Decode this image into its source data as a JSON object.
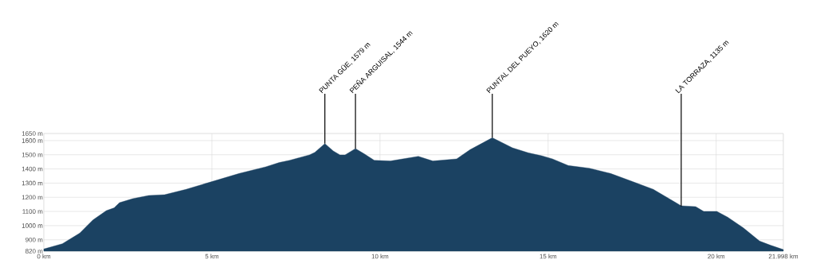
{
  "chart_data": {
    "type": "area",
    "x": [
      0,
      0.55,
      1.07,
      1.46,
      1.86,
      2.09,
      2.25,
      2.64,
      3.12,
      3.59,
      4.23,
      5.02,
      5.81,
      6.6,
      7.0,
      7.31,
      7.9,
      8.06,
      8.36,
      8.61,
      8.81,
      8.96,
      9.27,
      9.52,
      9.83,
      10.31,
      10.78,
      11.14,
      11.57,
      12.28,
      12.68,
      13.34,
      13.94,
      14.41,
      14.81,
      15.13,
      15.6,
      16.23,
      16.86,
      17.5,
      18.13,
      18.96,
      19.39,
      19.63,
      20.02,
      20.34,
      20.81,
      21.29,
      21.6,
      21.998
    ],
    "series": [
      {
        "color": "#1b4262",
        "values": [
          835,
          872,
          947,
          1040,
          1106,
          1125,
          1162,
          1190,
          1213,
          1218,
          1256,
          1312,
          1368,
          1415,
          1445,
          1461,
          1499,
          1517,
          1579,
          1527,
          1499,
          1499,
          1544,
          1508,
          1461,
          1456,
          1475,
          1489,
          1456,
          1471,
          1536,
          1620,
          1549,
          1514,
          1493,
          1471,
          1424,
          1405,
          1368,
          1312,
          1256,
          1140,
          1134,
          1100,
          1100,
          1060,
          984,
          891,
          863,
          831
        ]
      }
    ],
    "xlim": [
      0,
      21.998
    ],
    "ylim": [
      820,
      1650
    ],
    "xticks": [
      {
        "value": 0,
        "label": "0 km"
      },
      {
        "value": 5,
        "label": "5 km"
      },
      {
        "value": 10,
        "label": "10 km"
      },
      {
        "value": 15,
        "label": "15 km"
      },
      {
        "value": 20,
        "label": "20 km"
      },
      {
        "value": 21.998,
        "label": "21.998 km"
      }
    ],
    "yticks": [
      {
        "value": 820,
        "label": "820 m"
      },
      {
        "value": 900,
        "label": "900 m"
      },
      {
        "value": 1000,
        "label": "1000 m"
      },
      {
        "value": 1100,
        "label": "1100 m"
      },
      {
        "value": 1200,
        "label": "1200 m"
      },
      {
        "value": 1300,
        "label": "1300 m"
      },
      {
        "value": 1400,
        "label": "1400 m"
      },
      {
        "value": 1500,
        "label": "1500 m"
      },
      {
        "value": 1600,
        "label": "1600 m"
      },
      {
        "value": 1650,
        "label": "1650 m"
      }
    ],
    "grid": true,
    "annotations": [
      {
        "text": "PUNTA GÜE, 1579 m",
        "x": 8.36,
        "y": 1579
      },
      {
        "text": "PEÑA ARGUISAL, 1544 m",
        "x": 9.27,
        "y": 1544
      },
      {
        "text": "PUNTAL DEL PUEYO, 1620 m",
        "x": 13.34,
        "y": 1620
      },
      {
        "text": "LA TORRAZA, 1135 m",
        "x": 18.96,
        "y": 1135
      }
    ]
  }
}
